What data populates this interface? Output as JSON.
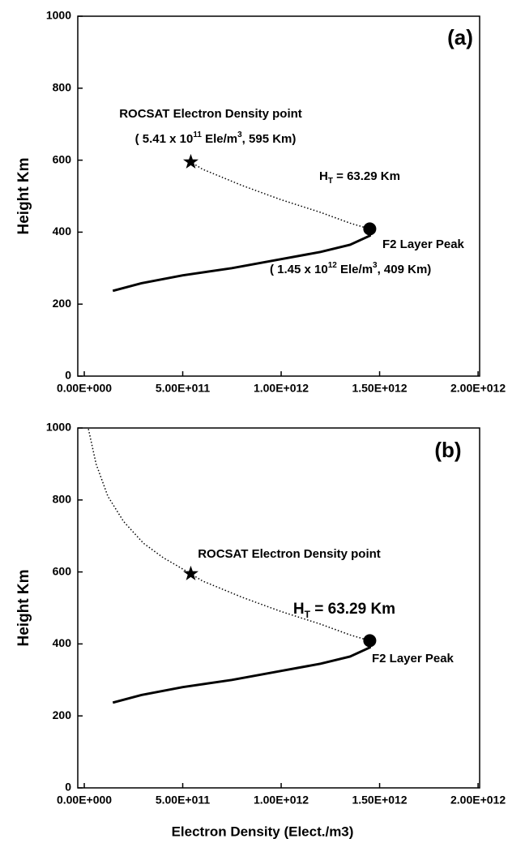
{
  "chart_data": [
    {
      "type": "line",
      "panel_label": "(a)",
      "ylabel": "Height Km",
      "xlim": [
        -33000000000,
        2008000000000
      ],
      "ylim": [
        0,
        1000
      ],
      "xticks": [
        {
          "value": 0,
          "label": "0.00E+000"
        },
        {
          "value": 500000000000,
          "label": "5.00E+011"
        },
        {
          "value": 1000000000000,
          "label": "1.00E+012"
        },
        {
          "value": 1500000000000,
          "label": "1.50E+012"
        },
        {
          "value": 2000000000000,
          "label": "2.00E+012"
        }
      ],
      "yticks": [
        0,
        200,
        400,
        600,
        800,
        1000
      ],
      "series": [
        {
          "style": "solid",
          "color": "#000000",
          "x": [
            145000000000,
            290000000000,
            500000000000,
            750000000000,
            1000000000000,
            1200000000000,
            1350000000000,
            1450000000000,
            1450000000000
          ],
          "values": [
            237,
            258,
            280,
            300,
            325,
            345,
            365,
            390,
            409
          ]
        },
        {
          "style": "dotted",
          "color": "#000000",
          "x": [
            1450000000000,
            1350000000000,
            1200000000000,
            1000000000000,
            800000000000,
            600000000000,
            541000000000
          ],
          "values": [
            409,
            425,
            455,
            490,
            530,
            575,
            595
          ]
        }
      ],
      "points": [
        {
          "marker": "star",
          "x": 541000000000,
          "y": 595
        },
        {
          "marker": "circle",
          "x": 1450000000000,
          "y": 409
        }
      ],
      "annotations": [
        {
          "parts": [
            {
              "text": "ROCSAT Electron Density point"
            }
          ]
        },
        {
          "parts": [
            {
              "text": "( 5.41 x 10"
            },
            {
              "text": "11",
              "shift": "super"
            },
            {
              "text": " Ele/m"
            },
            {
              "text": "3",
              "shift": "super"
            },
            {
              "text": ", 595 Km)"
            }
          ]
        },
        {
          "parts": [
            {
              "text": "H"
            },
            {
              "text": "T",
              "shift": "sub"
            },
            {
              "text": " = 63.29 Km"
            }
          ]
        },
        {
          "parts": [
            {
              "text": "F2 Layer Peak"
            }
          ]
        },
        {
          "parts": [
            {
              "text": "( 1.45 x 10"
            },
            {
              "text": "12",
              "shift": "super"
            },
            {
              "text": " Ele/m"
            },
            {
              "text": "3",
              "shift": "super"
            },
            {
              "text": ", 409 Km)"
            }
          ]
        }
      ]
    },
    {
      "type": "line",
      "panel_label": "(b)",
      "ylabel": "Height Km",
      "xlabel": "Electron Density (Elect./m3)",
      "xlim": [
        -33000000000,
        2008000000000
      ],
      "ylim": [
        0,
        1000
      ],
      "xticks": [
        {
          "value": 0,
          "label": "0.00E+000"
        },
        {
          "value": 500000000000,
          "label": "5.00E+011"
        },
        {
          "value": 1000000000000,
          "label": "1.00E+012"
        },
        {
          "value": 1500000000000,
          "label": "1.50E+012"
        },
        {
          "value": 2000000000000,
          "label": "2.00E+012"
        }
      ],
      "yticks": [
        0,
        200,
        400,
        600,
        800,
        1000
      ],
      "series": [
        {
          "style": "solid",
          "color": "#000000",
          "x": [
            145000000000,
            290000000000,
            500000000000,
            750000000000,
            1000000000000,
            1200000000000,
            1350000000000,
            1450000000000,
            1450000000000
          ],
          "values": [
            237,
            258,
            280,
            300,
            325,
            345,
            365,
            390,
            409
          ]
        },
        {
          "style": "dotted",
          "color": "#000000",
          "x": [
            1450000000000,
            1350000000000,
            1200000000000,
            1000000000000,
            800000000000,
            600000000000,
            541000000000,
            400000000000,
            300000000000,
            200000000000,
            120000000000,
            60000000000,
            20000000000
          ],
          "values": [
            409,
            425,
            455,
            490,
            530,
            575,
            595,
            640,
            680,
            740,
            810,
            900,
            1000
          ]
        }
      ],
      "points": [
        {
          "marker": "star",
          "x": 541000000000,
          "y": 595
        },
        {
          "marker": "circle",
          "x": 1450000000000,
          "y": 409
        }
      ],
      "annotations": [
        {
          "parts": [
            {
              "text": "ROCSAT Electron Density point"
            }
          ]
        },
        {
          "parts": [
            {
              "text": "H"
            },
            {
              "text": "T",
              "shift": "sub"
            },
            {
              "text": " = 63.29 Km"
            }
          ]
        },
        {
          "parts": [
            {
              "text": "F2 Layer Peak"
            }
          ]
        }
      ]
    }
  ]
}
